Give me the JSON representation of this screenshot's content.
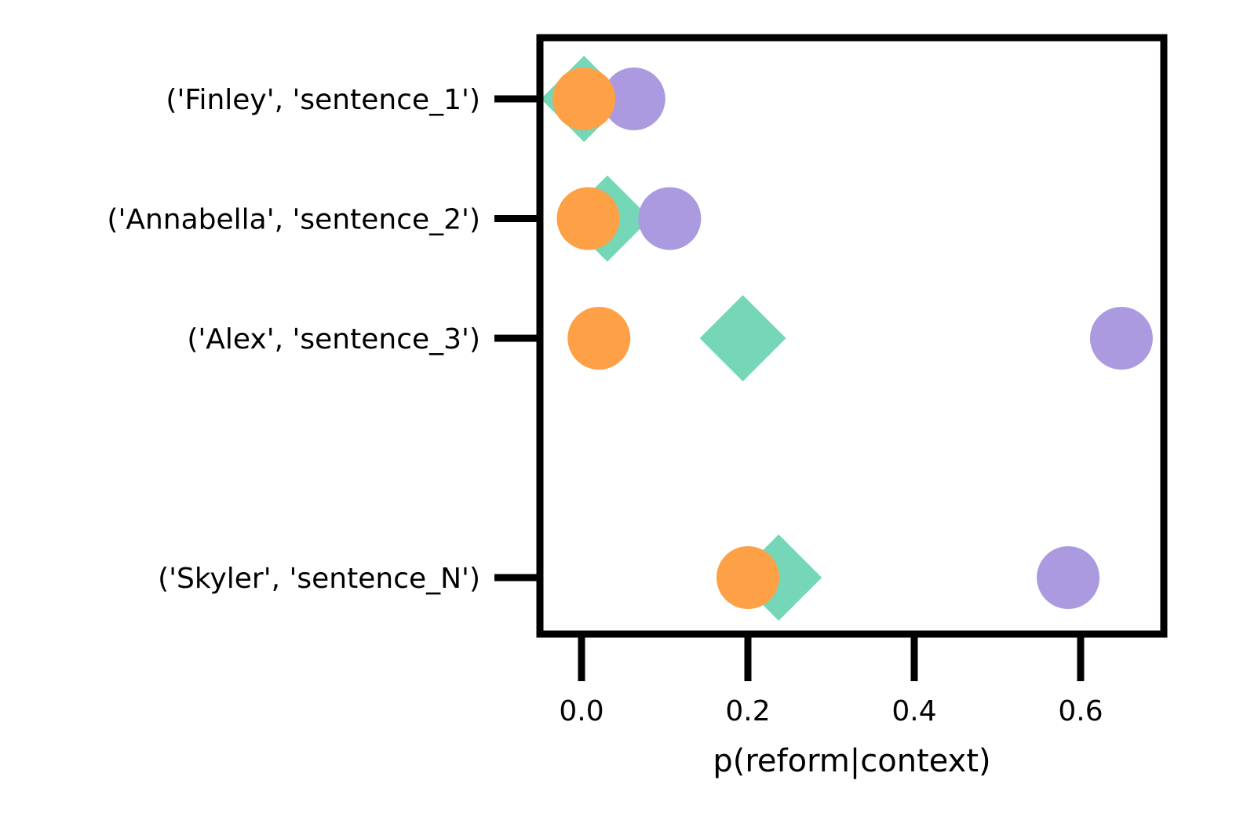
{
  "chart_data": {
    "type": "scatter",
    "title": "",
    "xlabel": "p(reform|context)",
    "ylabel": "",
    "xlim": [
      -0.05,
      0.7
    ],
    "xticks": [
      0.0,
      0.2,
      0.4,
      0.6
    ],
    "xtick_labels": [
      "0.0",
      "0.2",
      "0.4",
      "0.6"
    ],
    "grid": false,
    "legend": "none",
    "categories": [
      "('Finley', 'sentence_1')",
      "('Annabella', 'sentence_2')",
      "('Alex', 'sentence_3')",
      "('Skyler', 'sentence_N')"
    ],
    "category_y_positions": [
      0,
      1,
      2,
      4
    ],
    "series": [
      {
        "marker": "diamond",
        "color": "#75d7b8",
        "values": [
          0.003,
          0.031,
          0.194,
          0.237
        ]
      },
      {
        "marker": "circle",
        "color": "#ab9ae0",
        "values": [
          0.063,
          0.106,
          0.649,
          0.585
        ]
      },
      {
        "marker": "circle",
        "color": "#fea046",
        "values": [
          0.003,
          0.008,
          0.021,
          0.2
        ]
      }
    ]
  }
}
